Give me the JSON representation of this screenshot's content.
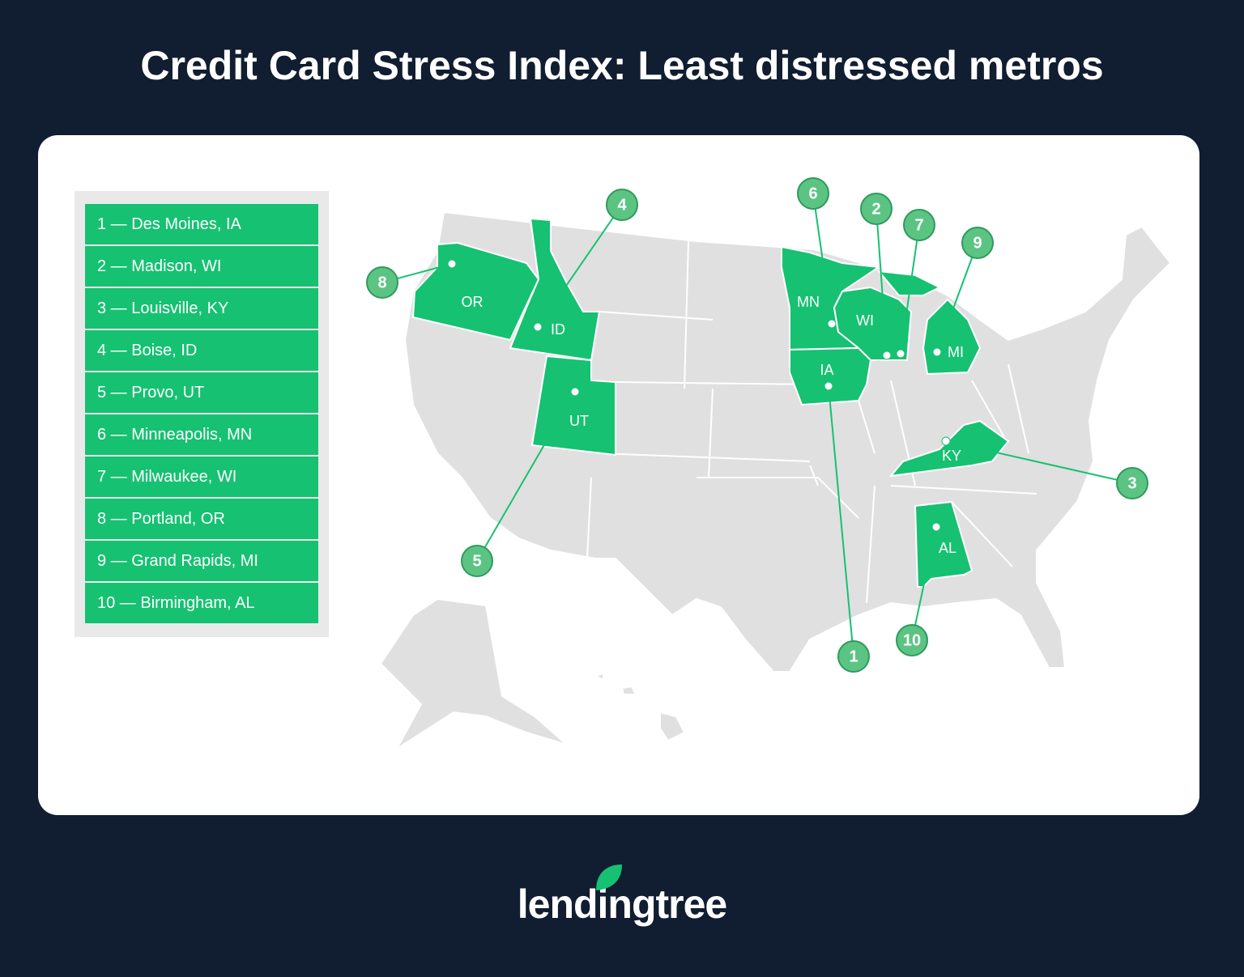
{
  "title": "Credit Card Stress Index: Least distressed metros",
  "ranking": [
    "1 — Des Moines, IA",
    "2 — Madison, WI",
    "3 — Louisville, KY",
    "4 — Boise, ID",
    "5 — Provo, UT",
    "6 — Minneapolis, MN",
    "7 — Milwaukee, WI",
    "8 — Portland, OR",
    "9 — Grand Rapids, MI",
    "10 — Birmingham, AL"
  ],
  "map": {
    "states": [
      "OR",
      "ID",
      "UT",
      "MN",
      "WI",
      "IA",
      "MI",
      "KY",
      "AL"
    ],
    "markers": [
      "1",
      "2",
      "3",
      "4",
      "5",
      "6",
      "7",
      "8",
      "9",
      "10"
    ]
  },
  "logo": "lendingtree"
}
